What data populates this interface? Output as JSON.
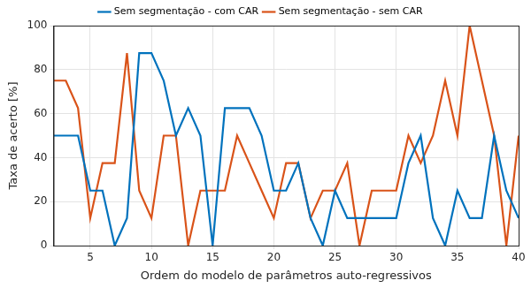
{
  "chart_data": {
    "type": "line",
    "x_label": "Ordem do modelo de parâmetros auto-regressivos",
    "y_label": "Taxa de acerto [%]",
    "x": [
      2,
      3,
      4,
      5,
      6,
      7,
      8,
      9,
      10,
      11,
      12,
      13,
      14,
      15,
      16,
      17,
      18,
      19,
      20,
      21,
      22,
      23,
      24,
      25,
      26,
      27,
      28,
      29,
      30,
      31,
      32,
      33,
      34,
      35,
      36,
      37,
      38,
      39,
      40
    ],
    "series": [
      {
        "name": "Sem segmentação - com CAR",
        "color": "#0072bd",
        "values": [
          50,
          50,
          50,
          25,
          25,
          0,
          12.5,
          87.5,
          87.5,
          75,
          50,
          62.5,
          50,
          0,
          62.5,
          62.5,
          62.5,
          50,
          25,
          25,
          37.5,
          12.5,
          0,
          25,
          12.5,
          12.5,
          12.5,
          12.5,
          12.5,
          37.5,
          50,
          12.5,
          0,
          25,
          12.5,
          12.5,
          50,
          25,
          12.5
        ]
      },
      {
        "name": "Sem segmentação - sem CAR",
        "color": "#d95319",
        "values": [
          75,
          75,
          62.5,
          12.5,
          37.5,
          37.5,
          87.5,
          25,
          12.5,
          50,
          50,
          0,
          25,
          25,
          25,
          50,
          37.5,
          25,
          12.5,
          37.5,
          37.5,
          12.5,
          25,
          25,
          37.5,
          0,
          25,
          25,
          25,
          50,
          37.5,
          50,
          75,
          50,
          100,
          75,
          50,
          0,
          50
        ]
      }
    ],
    "xlim": [
      2,
      40
    ],
    "xticks": [
      5,
      10,
      15,
      20,
      25,
      30,
      35,
      40
    ],
    "ylim": [
      0,
      100
    ],
    "yticks": [
      0,
      20,
      40,
      60,
      80,
      100
    ],
    "grid": true,
    "legend": "top"
  }
}
